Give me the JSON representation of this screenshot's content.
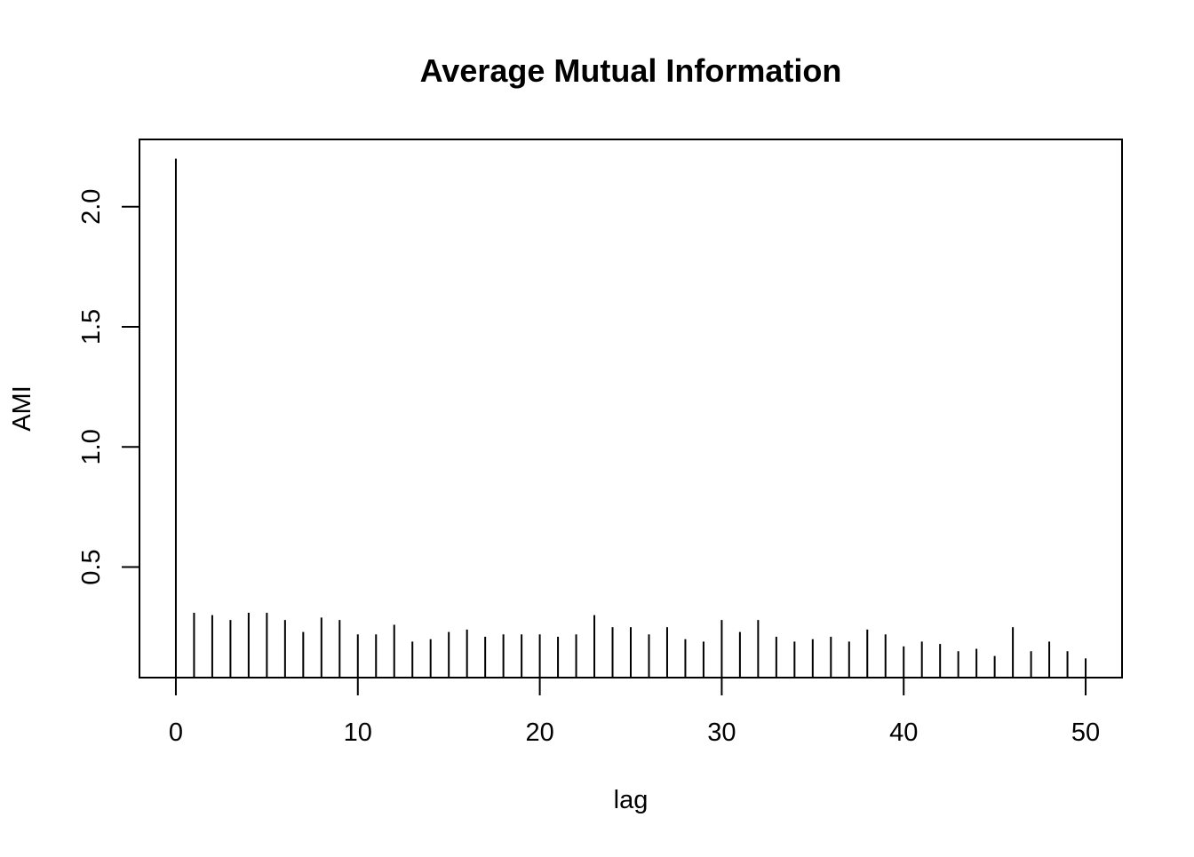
{
  "chart_data": {
    "type": "bar",
    "style": "histogram-lines",
    "title": "Average Mutual Information",
    "xlabel": "lag",
    "ylabel": "AMI",
    "xlim": [
      -2,
      52
    ],
    "ylim": [
      0.04,
      2.28
    ],
    "x_ticks": [
      0,
      10,
      20,
      30,
      40,
      50
    ],
    "x_tick_labels": [
      "0",
      "10",
      "20",
      "30",
      "40",
      "50"
    ],
    "y_ticks": [
      0.5,
      1.0,
      1.5,
      2.0
    ],
    "y_tick_labels": [
      "0.5",
      "1.0",
      "1.5",
      "2.0"
    ],
    "grid": false,
    "x": [
      0,
      1,
      2,
      3,
      4,
      5,
      6,
      7,
      8,
      9,
      10,
      11,
      12,
      13,
      14,
      15,
      16,
      17,
      18,
      19,
      20,
      21,
      22,
      23,
      24,
      25,
      26,
      27,
      28,
      29,
      30,
      31,
      32,
      33,
      34,
      35,
      36,
      37,
      38,
      39,
      40,
      41,
      42,
      43,
      44,
      45,
      46,
      47,
      48,
      49,
      50
    ],
    "values": [
      2.2,
      0.31,
      0.3,
      0.28,
      0.31,
      0.31,
      0.28,
      0.23,
      0.29,
      0.28,
      0.22,
      0.22,
      0.26,
      0.19,
      0.2,
      0.23,
      0.24,
      0.21,
      0.22,
      0.22,
      0.22,
      0.21,
      0.22,
      0.3,
      0.25,
      0.25,
      0.22,
      0.25,
      0.2,
      0.19,
      0.28,
      0.23,
      0.28,
      0.21,
      0.19,
      0.2,
      0.21,
      0.19,
      0.24,
      0.22,
      0.17,
      0.19,
      0.18,
      0.15,
      0.16,
      0.13,
      0.25,
      0.15,
      0.19,
      0.15,
      0.12
    ]
  }
}
